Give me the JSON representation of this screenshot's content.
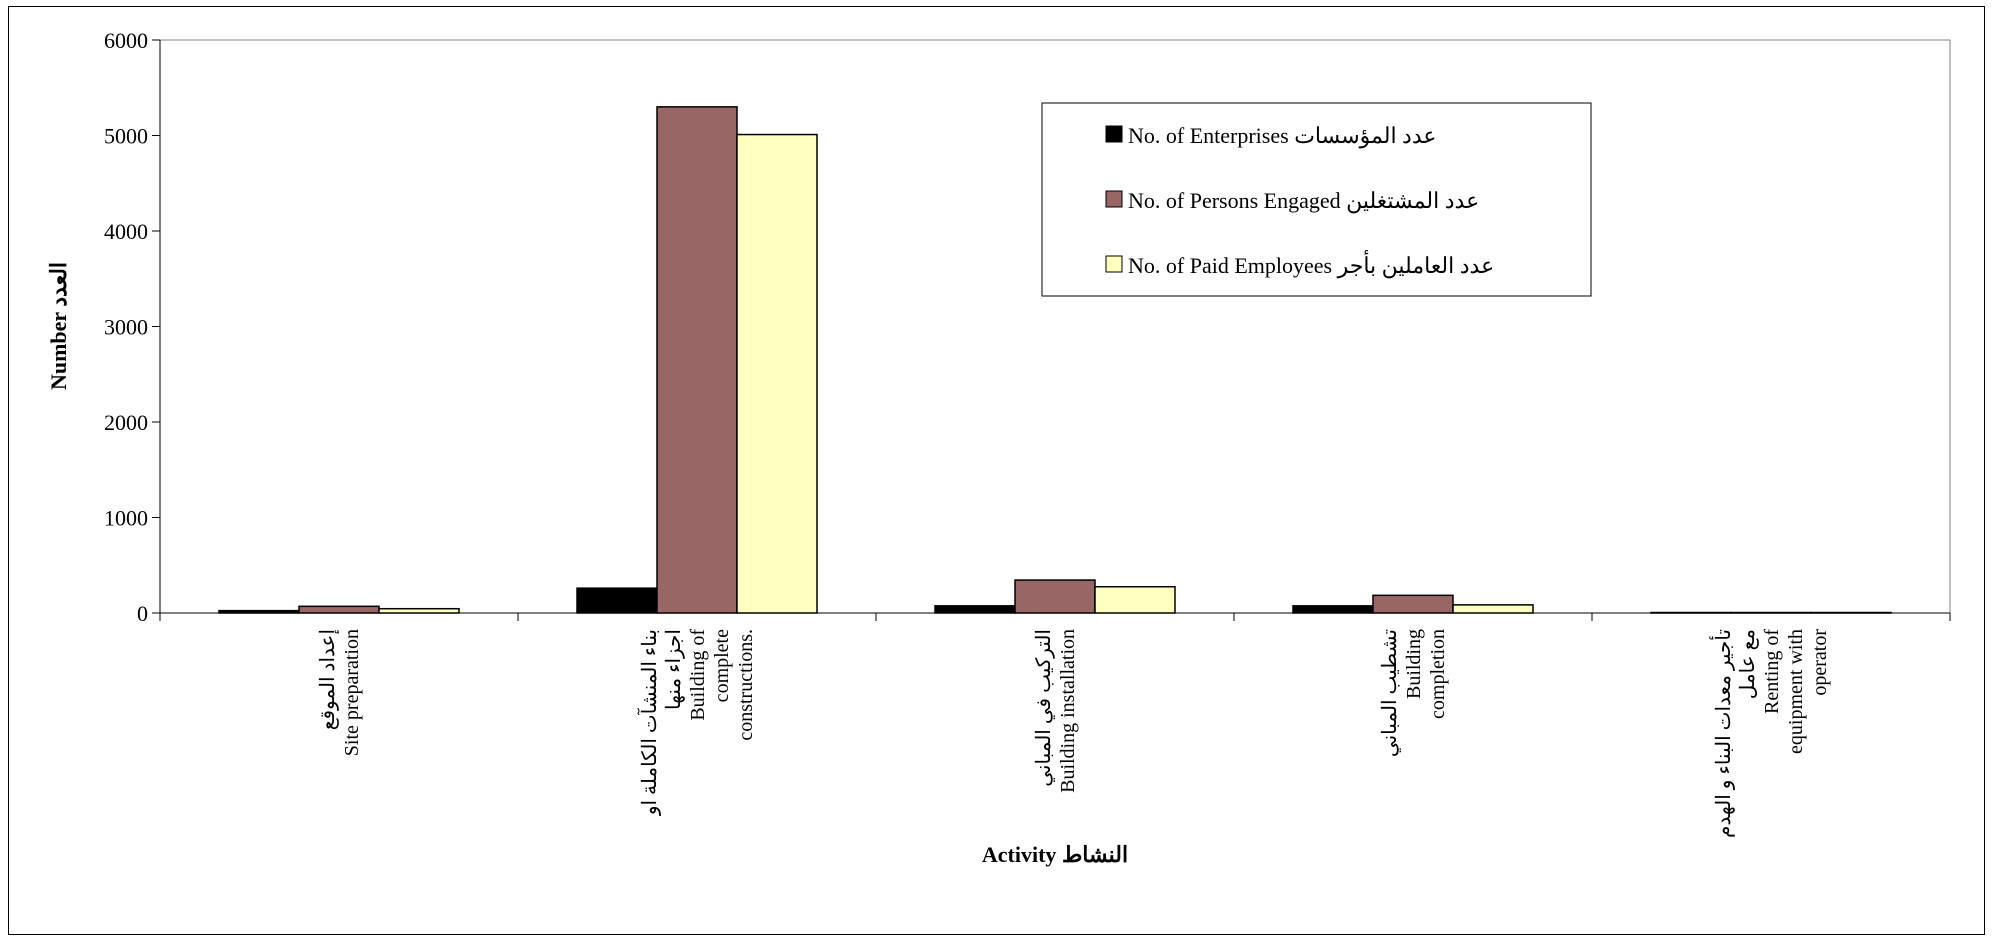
{
  "chart_data": {
    "type": "bar",
    "title": "",
    "xlabel": "Activity النشاط",
    "ylabel": "Number العدد",
    "ylim": [
      0,
      6000
    ],
    "yticks": [
      "0",
      "1000",
      "2000",
      "3000",
      "4000",
      "5000",
      "6000"
    ],
    "grid": false,
    "legend_position": "top-right",
    "categories": [
      [
        "إعداد الموقع",
        "Site preparation"
      ],
      [
        "بناء المنشآت الكاملة او",
        "اجزاء منها",
        "Building of",
        "complete",
        "constructions."
      ],
      [
        "التركيب في المباني",
        "Building installation"
      ],
      [
        "تشطيب المباني",
        "Building",
        "completion"
      ],
      [
        "تأجير معدات البناء و الهدم",
        "مع عامل",
        "Renting of",
        "equipment with",
        "operator"
      ]
    ],
    "series": [
      {
        "name": "No. of Enterprises عدد  المؤسسات",
        "color": "#000000",
        "values": [
          25,
          260,
          75,
          75,
          5
        ]
      },
      {
        "name": "No. of Persons  Engaged عدد المشتغلين",
        "color": "#996666",
        "values": [
          70,
          5300,
          345,
          185,
          5
        ]
      },
      {
        "name": "No. of Paid Employees عدد العاملين بأجر",
        "color": "#ffffc0",
        "values": [
          45,
          5010,
          275,
          85,
          5
        ]
      }
    ]
  }
}
